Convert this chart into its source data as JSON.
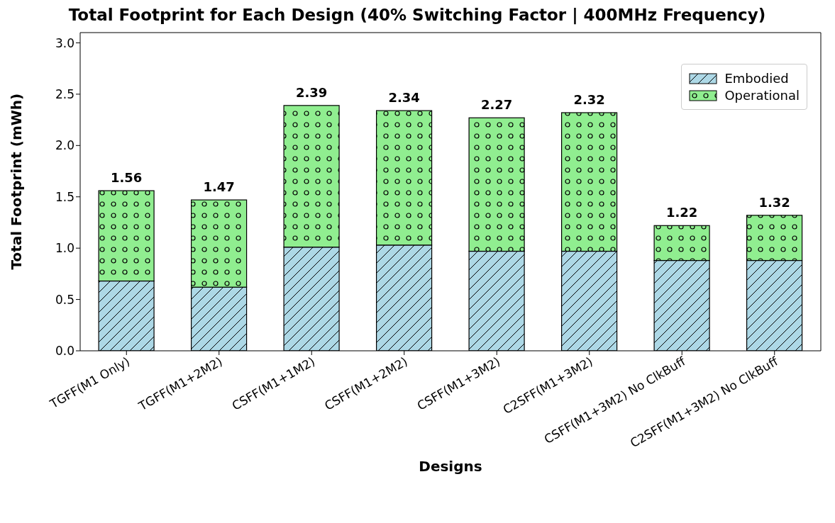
{
  "chart_data": {
    "type": "bar",
    "title": "Total Footprint for Each Design (40% Switching Factor | 400MHz Frequency)",
    "xlabel": "Designs",
    "ylabel": "Total Footprint (mWh)",
    "categories": [
      "TGFF(M1 Only)",
      "TGFF(M1+2M2)",
      "CSFF(M1+1M2)",
      "CSFF(M1+2M2)",
      "CSFF(M1+3M2)",
      "C2SFF(M1+3M2)",
      "CSFF(M1+3M2) No ClkBuff",
      "C2SFF(M1+3M2) No ClkBuff"
    ],
    "series": [
      {
        "name": "Embodied",
        "color": "#add8e6",
        "values": [
          0.68,
          0.62,
          1.01,
          1.03,
          0.97,
          0.97,
          0.88,
          0.88
        ]
      },
      {
        "name": "Operational",
        "color": "#90ee90",
        "values": [
          0.88,
          0.85,
          1.38,
          1.31,
          1.3,
          1.35,
          0.34,
          0.44
        ]
      }
    ],
    "stacked": true,
    "totals": [
      "1.56",
      "1.47",
      "2.39",
      "2.34",
      "2.27",
      "2.32",
      "1.22",
      "1.32"
    ],
    "ylim": [
      0,
      3.1
    ],
    "yticks": [
      {
        "value": 0,
        "label": "0.0"
      },
      0.5,
      {
        "value": 1,
        "label": "1.0"
      },
      1.5,
      {
        "value": 2,
        "label": "2.0"
      },
      2.5,
      {
        "value": 3,
        "label": "3.0"
      }
    ],
    "legend": "top right"
  }
}
